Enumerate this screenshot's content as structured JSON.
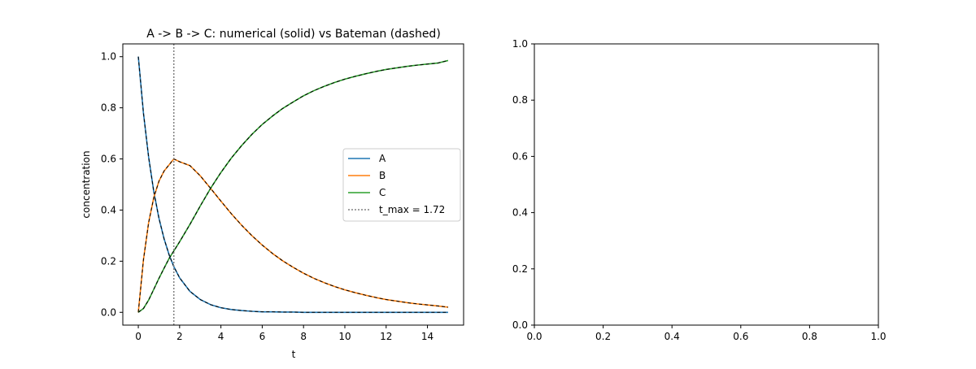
{
  "chart_data": [
    {
      "type": "line",
      "title": "A -> B -> C: numerical (solid) vs Bateman (dashed)",
      "xlabel": "t",
      "ylabel": "concentration",
      "xlim": [
        -0.75,
        15.75
      ],
      "ylim": [
        -0.05,
        1.05
      ],
      "xticks": [
        0,
        2,
        4,
        6,
        8,
        10,
        12,
        14
      ],
      "yticks": [
        0.0,
        0.2,
        0.4,
        0.6,
        0.8,
        1.0
      ],
      "xtick_labels": [
        "0",
        "2",
        "4",
        "6",
        "8",
        "10",
        "12",
        "14"
      ],
      "ytick_labels": [
        "0.0",
        "0.2",
        "0.4",
        "0.6",
        "0.8",
        "1.0"
      ],
      "grid": false,
      "legend_position": "center-right",
      "x": [
        0,
        0.25,
        0.5,
        0.75,
        1,
        1.25,
        1.5,
        1.72,
        2,
        2.5,
        3,
        3.5,
        4,
        4.5,
        5,
        5.5,
        6,
        6.5,
        7,
        7.5,
        8,
        8.5,
        9,
        9.5,
        10,
        10.5,
        11,
        11.5,
        12,
        12.5,
        13,
        13.5,
        14,
        14.5,
        15
      ],
      "series": [
        {
          "name": "A",
          "color": "#1f77b4",
          "style": "solid",
          "values": [
            1.0,
            0.779,
            0.607,
            0.472,
            0.368,
            0.287,
            0.223,
            0.179,
            0.135,
            0.082,
            0.05,
            0.03,
            0.018,
            0.011,
            0.007,
            0.004,
            0.002,
            0.002,
            0.001,
            0.001,
            0.0,
            0.0,
            0.0,
            0.0,
            0.0,
            0.0,
            0.0,
            0.0,
            0.0,
            0.0,
            0.0,
            0.0,
            0.0,
            0.0,
            0.0
          ]
        },
        {
          "name": "B",
          "color": "#ff7f0e",
          "style": "solid",
          "values": [
            0.0,
            0.206,
            0.351,
            0.449,
            0.513,
            0.553,
            0.578,
            0.6,
            0.589,
            0.574,
            0.534,
            0.485,
            0.435,
            0.386,
            0.341,
            0.3,
            0.263,
            0.23,
            0.201,
            0.176,
            0.153,
            0.133,
            0.116,
            0.101,
            0.088,
            0.077,
            0.067,
            0.058,
            0.05,
            0.044,
            0.038,
            0.033,
            0.029,
            0.025,
            0.02
          ]
        },
        {
          "name": "C",
          "color": "#2ca02c",
          "style": "solid",
          "values": [
            0.0,
            0.015,
            0.048,
            0.09,
            0.133,
            0.173,
            0.212,
            0.24,
            0.276,
            0.344,
            0.416,
            0.485,
            0.547,
            0.603,
            0.652,
            0.696,
            0.735,
            0.768,
            0.798,
            0.823,
            0.847,
            0.867,
            0.884,
            0.899,
            0.912,
            0.923,
            0.933,
            0.942,
            0.95,
            0.956,
            0.962,
            0.967,
            0.971,
            0.975,
            0.985
          ]
        }
      ],
      "bateman_style": {
        "color": "#000000",
        "style": "dashed"
      },
      "vline": {
        "x": 1.72,
        "label": "t_max = 1.72",
        "color": "#808080",
        "style": "dotted"
      }
    },
    {
      "type": "line",
      "title": "",
      "xlabel": "",
      "ylabel": "",
      "xlim": [
        0.0,
        1.0
      ],
      "ylim": [
        0.0,
        1.0
      ],
      "xticks": [
        0.0,
        0.2,
        0.4,
        0.6,
        0.8,
        1.0
      ],
      "yticks": [
        0.0,
        0.2,
        0.4,
        0.6,
        0.8,
        1.0
      ],
      "xtick_labels": [
        "0.0",
        "0.2",
        "0.4",
        "0.6",
        "0.8",
        "1.0"
      ],
      "ytick_labels": [
        "0.0",
        "0.2",
        "0.4",
        "0.6",
        "0.8",
        "1.0"
      ],
      "grid": false,
      "series": []
    }
  ]
}
